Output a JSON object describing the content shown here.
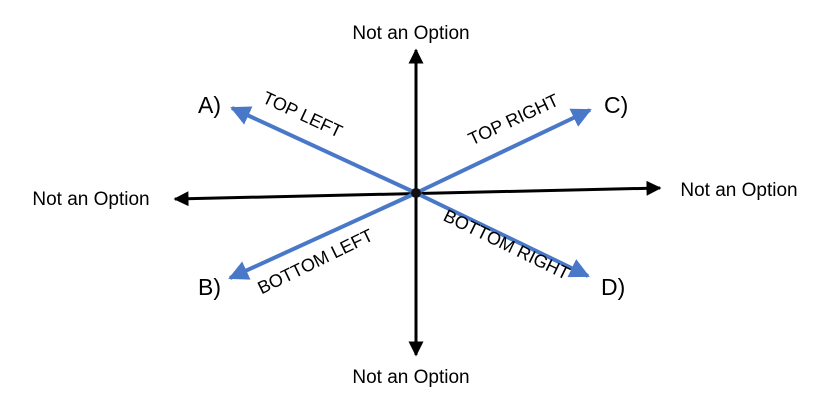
{
  "diagram": {
    "axis_labels": {
      "top": "Not an Option",
      "bottom": "Not an Option",
      "left": "Not an Option",
      "right": "Not an Option"
    },
    "options": {
      "top_left": {
        "letter": "A)",
        "label": "TOP LEFT"
      },
      "bottom_left": {
        "letter": "B)",
        "label": "BOTTOM LEFT"
      },
      "top_right": {
        "letter": "C)",
        "label": "TOP RIGHT"
      },
      "bottom_right": {
        "letter": "D)",
        "label": "BOTTOM RIGHT"
      }
    },
    "colors": {
      "axis": "#000000",
      "diagonal": "#4a78c8"
    }
  }
}
